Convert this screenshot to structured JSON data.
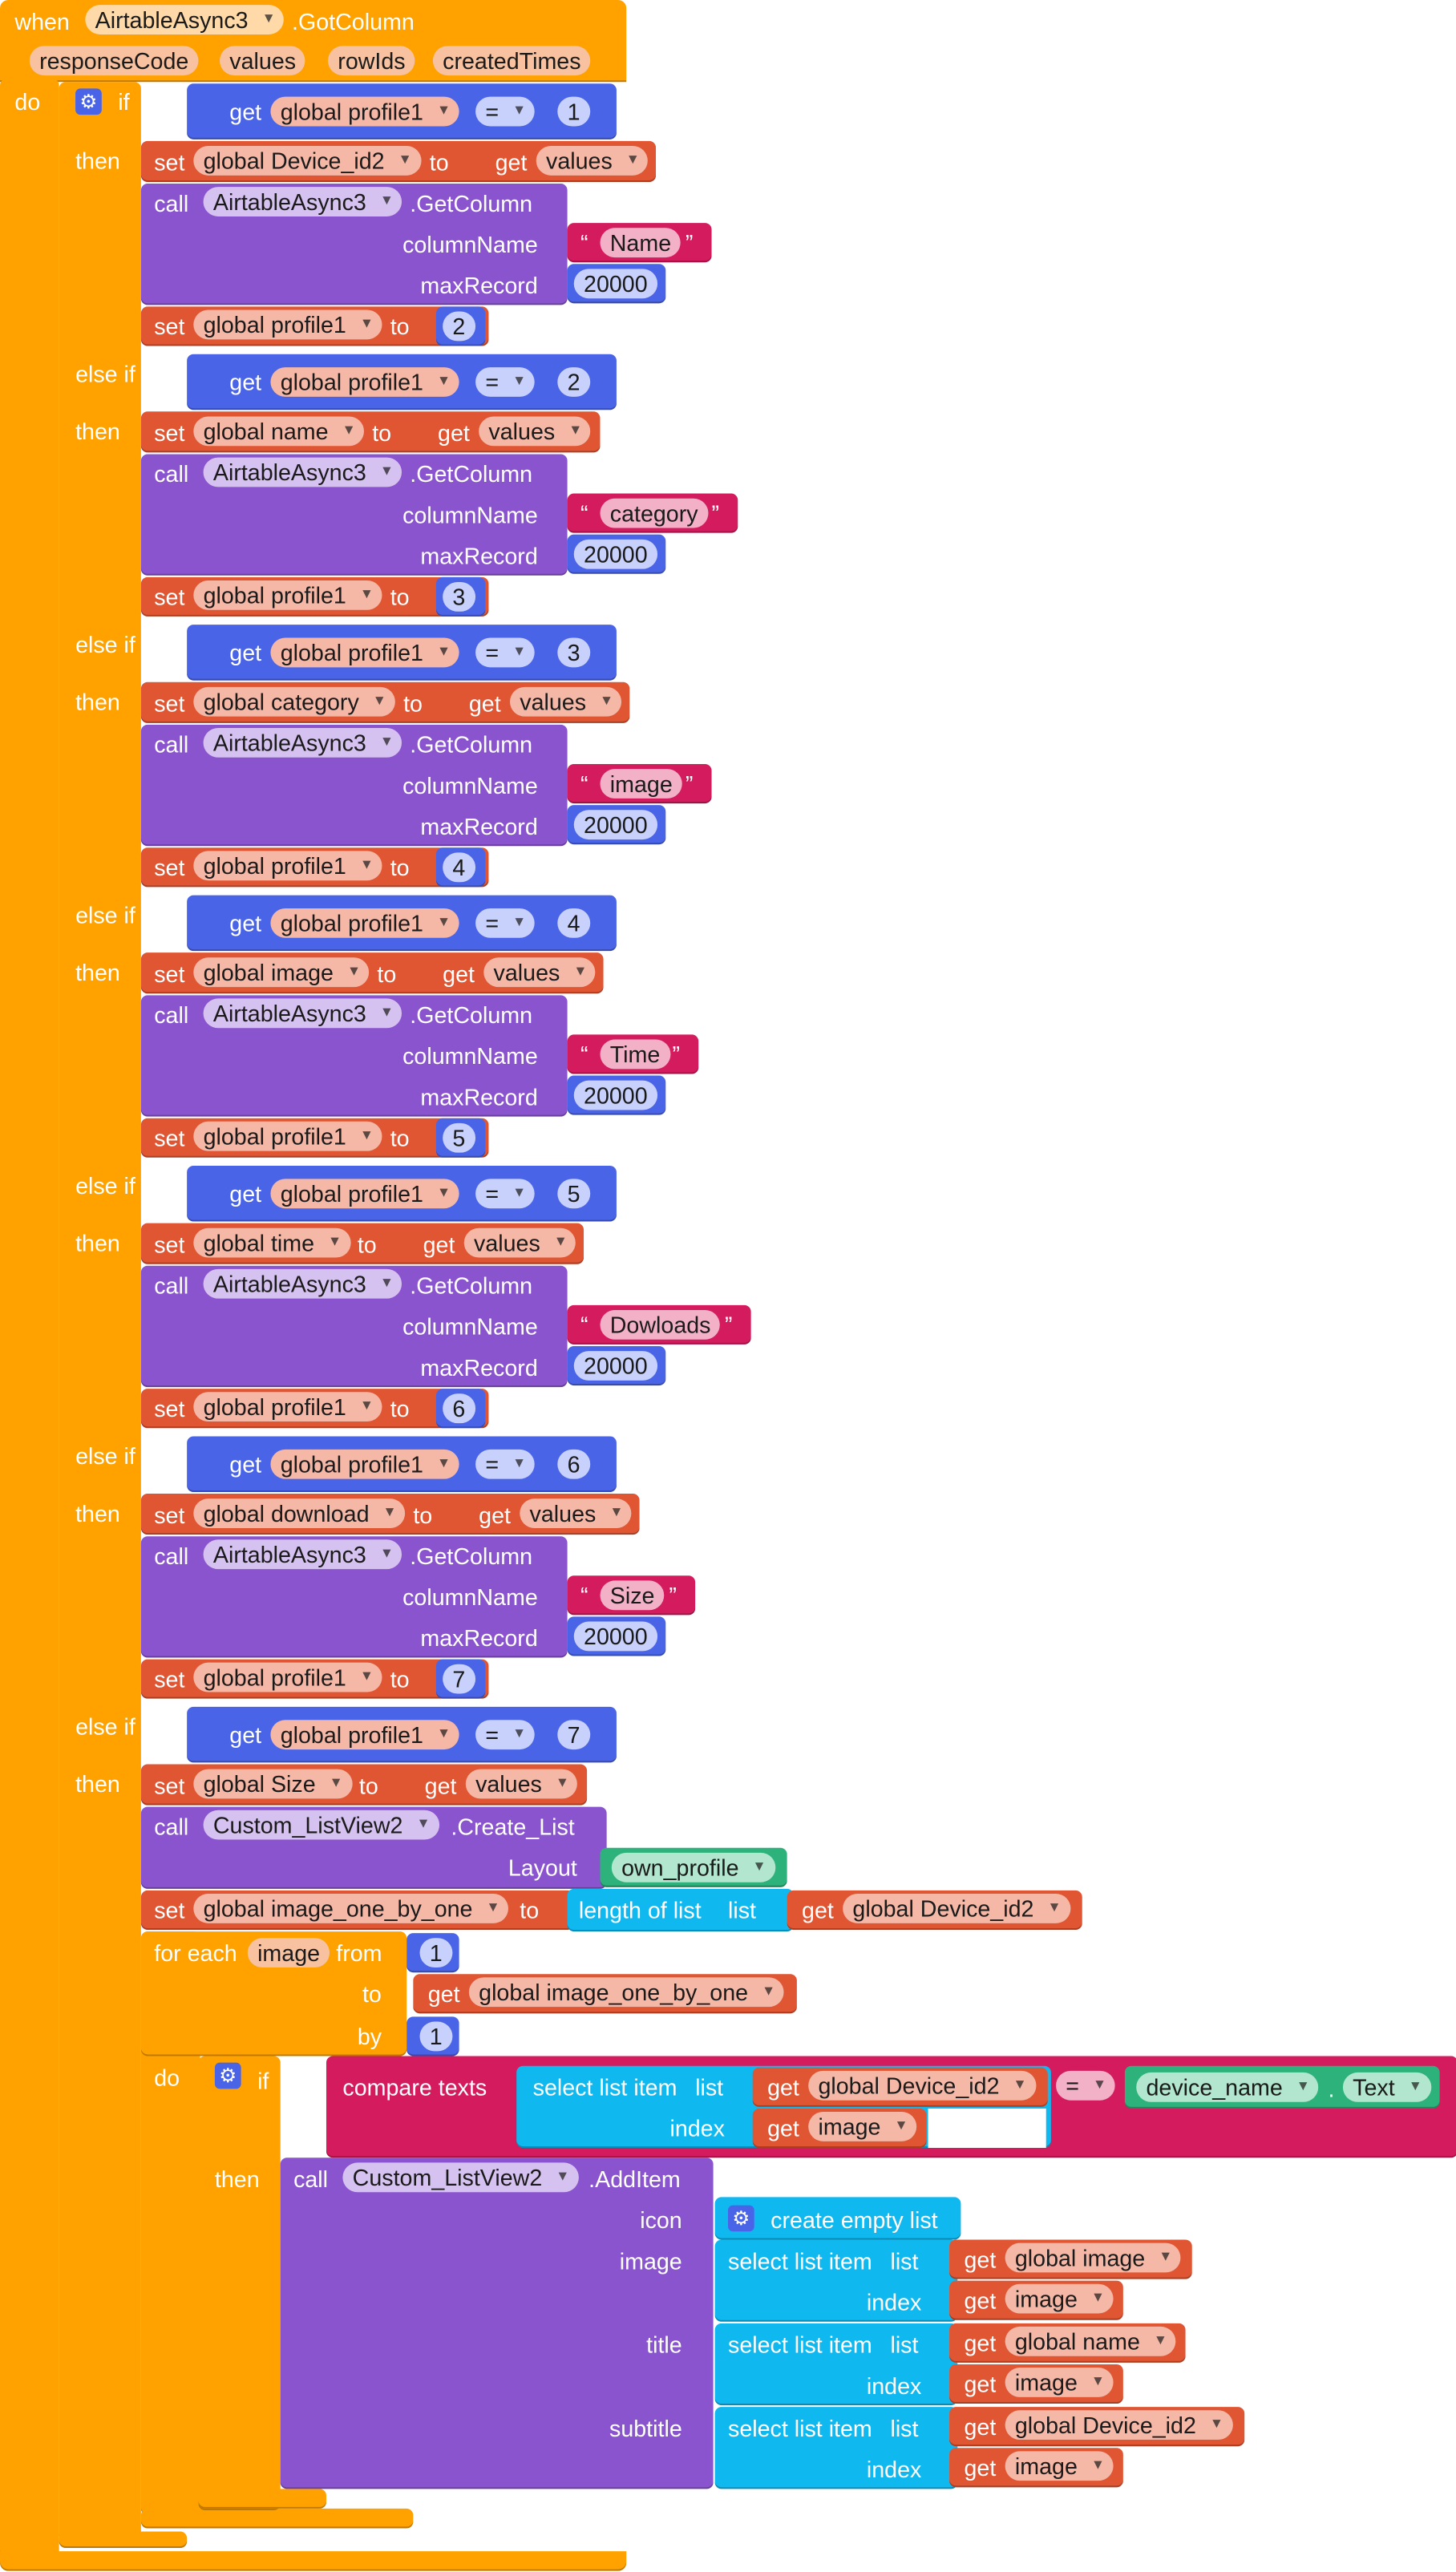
{
  "event": {
    "when": "when",
    "component": "AirtableAsync3",
    "event_name": ".GotColumn",
    "params": [
      "responseCode",
      "values",
      "rowIds",
      "createdTimes"
    ],
    "do": "do"
  },
  "kw": {
    "if": "if",
    "then": "then",
    "else_if": "else if",
    "set": "set",
    "to": "to",
    "get": "get",
    "call": "call",
    "column_name": "columnName",
    "max_record": "maxRecord",
    "eq": "=",
    "open_quote": "“",
    "close_quote": "”",
    "for_each": "for each",
    "from": "from",
    "by": "by",
    "do": "do",
    "compare_texts": "compare texts",
    "select_list_item": "select list item",
    "list": "list",
    "index": "index",
    "length_of_list": "length of list",
    "dot": "."
  },
  "branches": [
    {
      "cond_var": "global profile1",
      "cond_num": "1",
      "set_var": "global Device_id2",
      "get_var": "values",
      "call_comp": "AirtableAsync3",
      "call_method": ".GetColumn",
      "column": "Name",
      "max": "20000",
      "profile_var": "global profile1",
      "next": "2"
    },
    {
      "cond_var": "global profile1",
      "cond_num": "2",
      "set_var": "global name",
      "get_var": "values",
      "call_comp": "AirtableAsync3",
      "call_method": ".GetColumn",
      "column": "category",
      "max": "20000",
      "profile_var": "global profile1",
      "next": "3"
    },
    {
      "cond_var": "global profile1",
      "cond_num": "3",
      "set_var": "global category",
      "get_var": "values",
      "call_comp": "AirtableAsync3",
      "call_method": ".GetColumn",
      "column": "image",
      "max": "20000",
      "profile_var": "global profile1",
      "next": "4"
    },
    {
      "cond_var": "global profile1",
      "cond_num": "4",
      "set_var": "global image",
      "get_var": "values",
      "call_comp": "AirtableAsync3",
      "call_method": ".GetColumn",
      "column": "Time",
      "max": "20000",
      "profile_var": "global profile1",
      "next": "5"
    },
    {
      "cond_var": "global profile1",
      "cond_num": "5",
      "set_var": "global time",
      "get_var": "values",
      "call_comp": "AirtableAsync3",
      "call_method": ".GetColumn",
      "column": "Dowloads",
      "max": "20000",
      "profile_var": "global profile1",
      "next": "6"
    },
    {
      "cond_var": "global profile1",
      "cond_num": "6",
      "set_var": "global download",
      "get_var": "values",
      "call_comp": "AirtableAsync3",
      "call_method": ".GetColumn",
      "column": "Size",
      "max": "20000",
      "profile_var": "global profile1",
      "next": "7"
    }
  ],
  "last": {
    "cond_var": "global profile1",
    "cond_num": "7",
    "set_var": "global Size",
    "get_var": "values",
    "create_comp": "Custom_ListView2",
    "create_method": ".Create_List",
    "layout_label": "Layout",
    "layout_value": "own_profile",
    "set2_var": "global image_one_by_one",
    "len_get_var": "global Device_id2",
    "loop_var": "image",
    "from_num": "1",
    "to_get_var": "global image_one_by_one",
    "by_num": "1",
    "cmp_list_var": "global Device_id2",
    "cmp_index_var": "image",
    "cmp_op": "=",
    "cmp_comp": "device_name",
    "cmp_prop": "Text",
    "add_comp": "Custom_ListView2",
    "add_method": ".AddItem",
    "icon_label": "icon",
    "create_empty": "create empty list",
    "image_label": "image",
    "image_list_var": "global image",
    "image_index_var": "image",
    "title_label": "title",
    "title_list_var": "global name",
    "title_index_var": "image",
    "subtitle_label": "subtitle",
    "subtitle_list_var": "global Device_id2",
    "subtitle_index_var": "image"
  },
  "colors": {
    "control": "#ffa200",
    "variable": "#e05532",
    "math": "#4a64e8",
    "component": "#8a54cf",
    "text": "#d41b5d",
    "list": "#10b8f0",
    "component_getter": "#2cb27a"
  }
}
